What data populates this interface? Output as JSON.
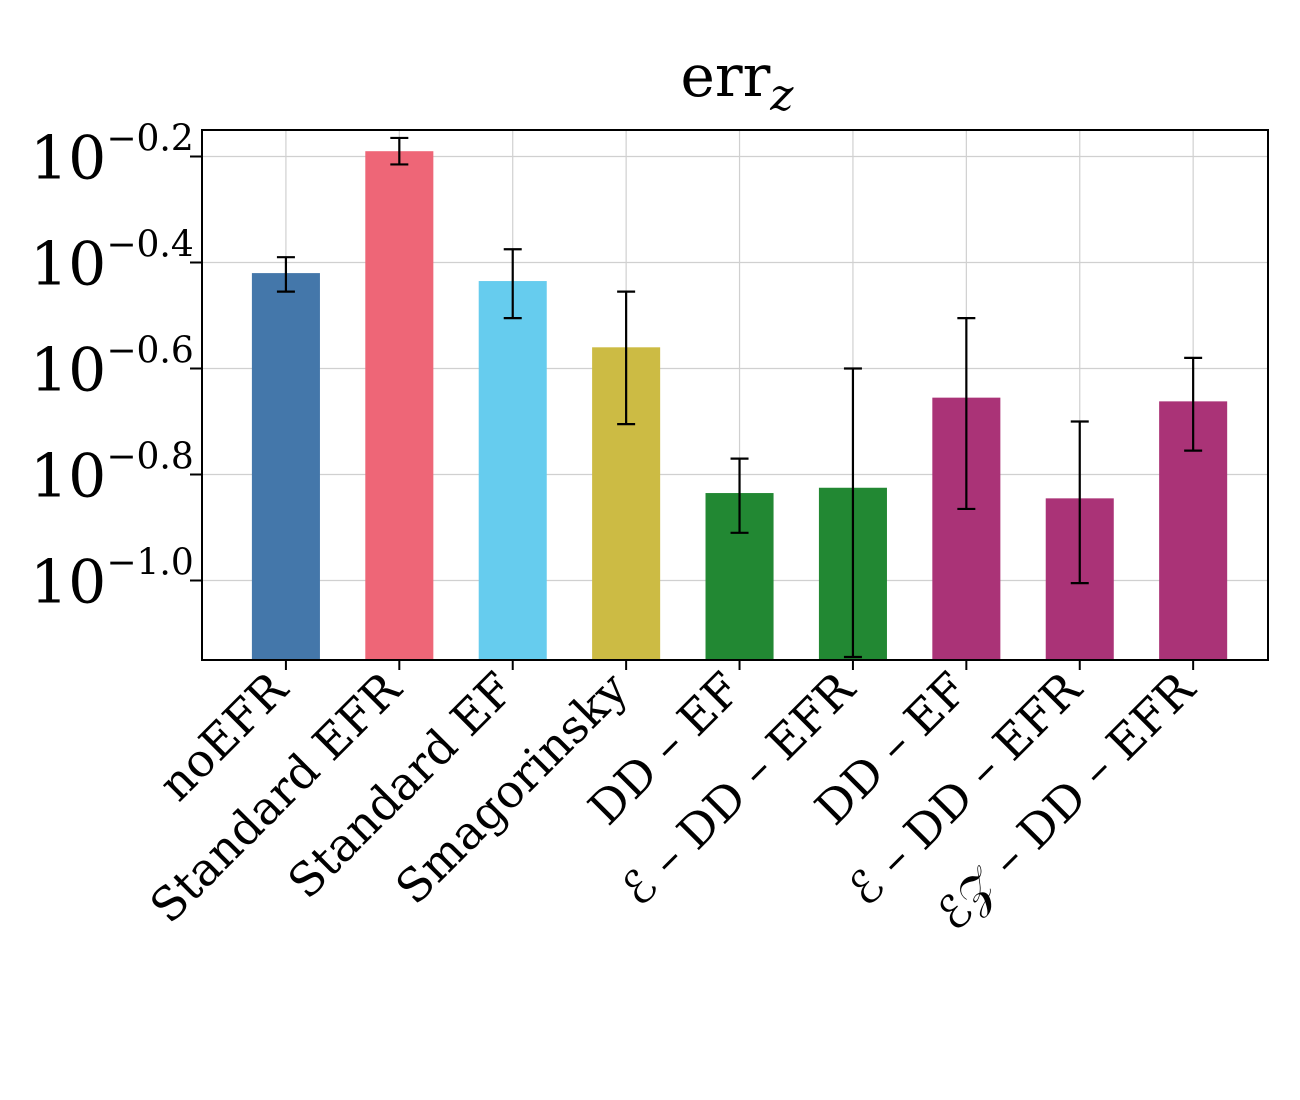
{
  "chart_data": {
    "type": "bar",
    "title": "err",
    "title_subscript": "z",
    "yscale": "log",
    "ylim_log10": [
      -1.15,
      -0.15
    ],
    "grid": true,
    "categories": [
      "noEFR",
      "Standard EFR",
      "Standard EF",
      "Smagorinsky",
      "DD – EF",
      "ℰ – DD – EFR",
      "DD – EF",
      "ℰ – DD – EFR",
      "ℰ𝒵 – DD – EFR"
    ],
    "values_log10": [
      -0.42,
      -0.19,
      -0.435,
      -0.56,
      -0.835,
      -0.825,
      -0.655,
      -0.845,
      -0.662
    ],
    "err_high_log10": [
      -0.39,
      -0.165,
      -0.375,
      -0.455,
      -0.77,
      -0.6,
      -0.505,
      -0.7,
      -0.58
    ],
    "err_low_log10": [
      -0.455,
      -0.215,
      -0.505,
      -0.705,
      -0.91,
      -1.145,
      -0.865,
      -1.005,
      -0.755
    ],
    "colors": [
      "#4477AA",
      "#EE6677",
      "#66CCEE",
      "#CCBB44",
      "#228833",
      "#228833",
      "#AA3377",
      "#AA3377",
      "#AA3377"
    ],
    "yticks_log10": [
      -0.2,
      -0.4,
      -0.6,
      -0.8,
      -1.0
    ],
    "ytick_labels": [
      "0.2",
      "0.4",
      "0.6",
      "0.8",
      "1.0"
    ],
    "ytick_base": "10"
  }
}
